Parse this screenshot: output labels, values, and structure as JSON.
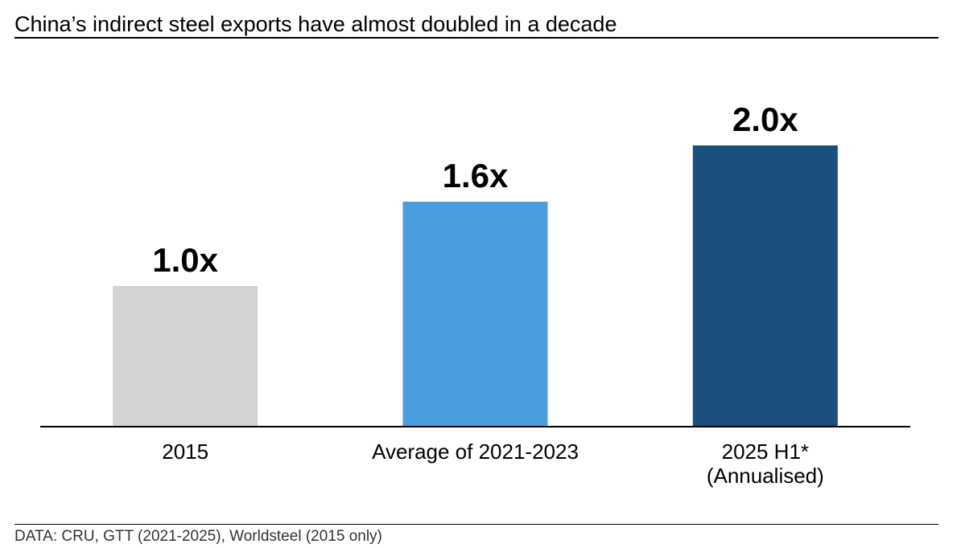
{
  "header": {
    "title": "China’s indirect steel exports have almost doubled in a decade"
  },
  "footer": {
    "source": "DATA: CRU, GTT (2021-2025), Worldsteel (2015 only)"
  },
  "colors": {
    "bar_2015": "#d3d3d3",
    "bar_2021_2023": "#4a9ddf",
    "bar_2025": "#1b4f7d",
    "axis": "#000000"
  },
  "chart_data": {
    "type": "bar",
    "title": "China’s indirect steel exports have almost doubled in a decade",
    "categories": [
      [
        "2015"
      ],
      [
        "Average of 2021-2023"
      ],
      [
        "2025 H1*",
        "(Annualised)"
      ]
    ],
    "values": [
      1.0,
      1.6,
      2.0
    ],
    "data_labels": [
      "1.0x",
      "1.6x",
      "2.0x"
    ],
    "bar_colors": [
      "#d3d3d3",
      "#4a9ddf",
      "#1b4f7d"
    ],
    "xlabel": "",
    "ylabel": "",
    "ylim": [
      0,
      2.3
    ],
    "grid": false,
    "legend": "none"
  }
}
